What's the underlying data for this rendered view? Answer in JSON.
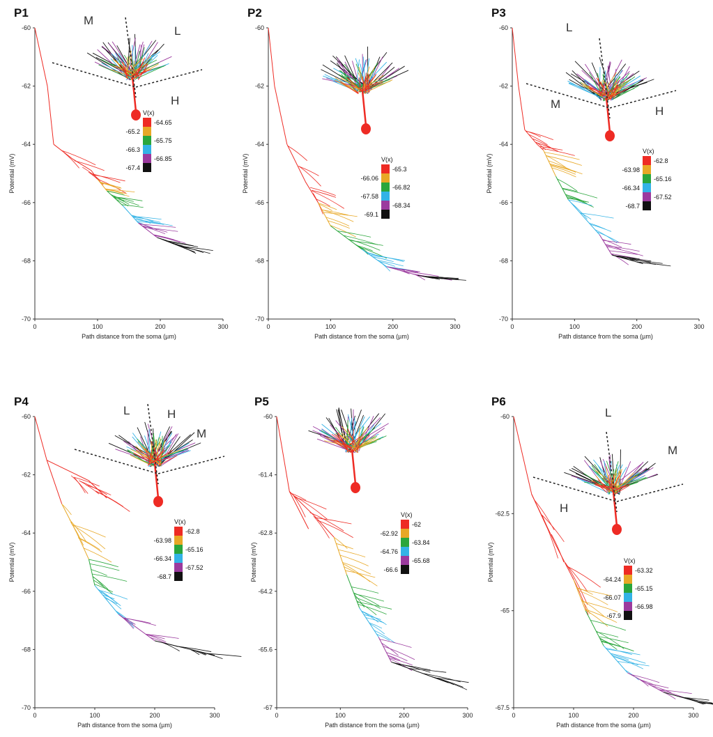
{
  "colors": {
    "red": "#ee2b24",
    "orange": "#e8a826",
    "green": "#2aa63c",
    "cyan": "#33b3e6",
    "purple": "#9b3a9e",
    "black": "#111111"
  },
  "chart_data": [
    {
      "panel": "P1",
      "type": "line",
      "xlabel": "Path distance from the soma (µm)",
      "ylabel": "Potential (mV)",
      "xlim": [
        0,
        300
      ],
      "ylim": [
        -70,
        -60
      ],
      "xticks": [
        "0",
        "100",
        "200",
        "300"
      ],
      "yticks": [
        "-60",
        "-62",
        "-64",
        "-66",
        "-68",
        "-70"
      ],
      "regions": [
        "M",
        "L",
        "H"
      ],
      "legend": {
        "title": "V(x)",
        "left": [
          "-65.2",
          "-66.3",
          "-67.4"
        ],
        "right": [
          "-64.65",
          "-65.75",
          "-66.85"
        ]
      },
      "trunk": [
        [
          0,
          -60
        ],
        [
          20,
          -62
        ],
        [
          30,
          -64
        ]
      ],
      "series": [
        {
          "color": "red",
          "x": [
            30,
            60,
            90,
            100
          ],
          "y": [
            -64,
            -64.5,
            -64.9,
            -65.2
          ]
        },
        {
          "color": "orange",
          "x": [
            100,
            115
          ],
          "y": [
            -65.2,
            -65.6
          ]
        },
        {
          "color": "green",
          "x": [
            115,
            140
          ],
          "y": [
            -65.6,
            -66.1
          ]
        },
        {
          "color": "cyan",
          "x": [
            140,
            165
          ],
          "y": [
            -66.1,
            -66.7
          ]
        },
        {
          "color": "purple",
          "x": [
            165,
            195
          ],
          "y": [
            -66.7,
            -67.2
          ]
        },
        {
          "color": "black",
          "x": [
            195,
            255
          ],
          "y": [
            -67.2,
            -67.7
          ]
        }
      ]
    },
    {
      "panel": "P2",
      "type": "line",
      "xlabel": "Path distance from the soma (µm)",
      "ylabel": "Potential (mV)",
      "xlim": [
        0,
        300
      ],
      "ylim": [
        -70,
        -60
      ],
      "xticks": [
        "0",
        "100",
        "200",
        "300"
      ],
      "yticks": [
        "-60",
        "-62",
        "-64",
        "-66",
        "-68",
        "-70"
      ],
      "regions": [],
      "legend": {
        "title": "V(x)",
        "left": [
          "-66.06",
          "-67.58",
          "-69.1"
        ],
        "right": [
          "-65.3",
          "-66.82",
          "-68.34"
        ]
      },
      "trunk": [
        [
          0,
          -60
        ],
        [
          10,
          -62
        ],
        [
          30,
          -64
        ]
      ],
      "series": [
        {
          "color": "red",
          "x": [
            30,
            60,
            80
          ],
          "y": [
            -64,
            -65.3,
            -66.0
          ]
        },
        {
          "color": "orange",
          "x": [
            80,
            100
          ],
          "y": [
            -66.0,
            -66.8
          ]
        },
        {
          "color": "green",
          "x": [
            100,
            150
          ],
          "y": [
            -66.8,
            -67.6
          ]
        },
        {
          "color": "cyan",
          "x": [
            150,
            190
          ],
          "y": [
            -67.6,
            -68.2
          ]
        },
        {
          "color": "purple",
          "x": [
            190,
            240
          ],
          "y": [
            -68.2,
            -68.5
          ]
        },
        {
          "color": "black",
          "x": [
            240,
            265
          ],
          "y": [
            -68.5,
            -68.6
          ]
        }
      ]
    },
    {
      "panel": "P3",
      "type": "line",
      "xlabel": "Path distance from the soma (µm)",
      "ylabel": "Potential (mV)",
      "xlim": [
        0,
        300
      ],
      "ylim": [
        -70,
        -60
      ],
      "xticks": [
        "0",
        "100",
        "200",
        "300"
      ],
      "yticks": [
        "-60",
        "-62",
        "-64",
        "-66",
        "-68",
        "-70"
      ],
      "regions": [
        "L",
        "M",
        "H"
      ],
      "legend": {
        "title": "V(x)",
        "left": [
          "-63.98",
          "-66.34",
          "-68.7"
        ],
        "right": [
          "-62.8",
          "-65.16",
          "-67.52"
        ]
      },
      "trunk": [
        [
          0,
          -60
        ],
        [
          10,
          -62
        ],
        [
          20,
          -63.5
        ]
      ],
      "series": [
        {
          "color": "red",
          "x": [
            20,
            40,
            50
          ],
          "y": [
            -63.5,
            -64.0,
            -64.2
          ]
        },
        {
          "color": "orange",
          "x": [
            50,
            70
          ],
          "y": [
            -64.2,
            -65.1
          ]
        },
        {
          "color": "green",
          "x": [
            70,
            90
          ],
          "y": [
            -65.1,
            -65.9
          ]
        },
        {
          "color": "cyan",
          "x": [
            90,
            140
          ],
          "y": [
            -65.9,
            -67.1
          ]
        },
        {
          "color": "purple",
          "x": [
            140,
            160
          ],
          "y": [
            -67.1,
            -67.8
          ]
        },
        {
          "color": "black",
          "x": [
            160,
            210
          ],
          "y": [
            -67.8,
            -68.1
          ]
        }
      ]
    },
    {
      "panel": "P4",
      "type": "line",
      "xlabel": "Path distance from the soma (µm)",
      "ylabel": "Potential (mV)",
      "xlim": [
        0,
        300
      ],
      "ylim": [
        -70,
        -60
      ],
      "xticks": [
        "0",
        "100",
        "200",
        "300"
      ],
      "yticks": [
        "-60",
        "-62",
        "-64",
        "-66",
        "-68",
        "-70"
      ],
      "regions": [
        "L",
        "H",
        "M"
      ],
      "legend": {
        "title": "V(x)",
        "left": [
          "-63.98",
          "-66.34",
          "-68.7"
        ],
        "right": [
          "-62.8",
          "-65.16",
          "-67.52"
        ]
      },
      "trunk": [
        [
          0,
          -60
        ],
        [
          20,
          -61.5
        ],
        [
          45,
          -63
        ]
      ],
      "series": [
        {
          "color": "red",
          "x": [
            20,
            90,
            120
          ],
          "y": [
            -61.5,
            -62.2,
            -62.8
          ]
        },
        {
          "color": "orange",
          "x": [
            45,
            70,
            90
          ],
          "y": [
            -63,
            -64.0,
            -64.9
          ]
        },
        {
          "color": "green",
          "x": [
            90,
            100
          ],
          "y": [
            -64.9,
            -65.8
          ]
        },
        {
          "color": "cyan",
          "x": [
            100,
            140
          ],
          "y": [
            -65.8,
            -66.8
          ]
        },
        {
          "color": "purple",
          "x": [
            140,
            200
          ],
          "y": [
            -66.8,
            -67.7
          ]
        },
        {
          "color": "black",
          "x": [
            200,
            300
          ],
          "y": [
            -67.7,
            -68.2
          ]
        }
      ]
    },
    {
      "panel": "P5",
      "type": "line",
      "xlabel": "Path distance from the soma (µm)",
      "ylabel": "Potential (mV)",
      "xlim": [
        0,
        300
      ],
      "ylim": [
        -67,
        -60
      ],
      "xticks": [
        "0",
        "100",
        "200",
        "300"
      ],
      "yticks": [
        "-60",
        "-61.4",
        "-62.8",
        "-64.2",
        "-65.6",
        "-67"
      ],
      "regions": [],
      "legend": {
        "title": "V(x)",
        "left": [
          "-62.92",
          "-64.76",
          "-66.6"
        ],
        "right": [
          "-62",
          "-63.84",
          "-65.68"
        ]
      },
      "trunk": [
        [
          0,
          -60
        ],
        [
          20,
          -61.8
        ],
        [
          50,
          -62.7
        ]
      ],
      "series": [
        {
          "color": "red",
          "x": [
            20,
            60,
            90
          ],
          "y": [
            -61.8,
            -62.4,
            -62.9
          ]
        },
        {
          "color": "orange",
          "x": [
            90,
            110
          ],
          "y": [
            -62.9,
            -63.8
          ]
        },
        {
          "color": "green",
          "x": [
            110,
            130
          ],
          "y": [
            -63.8,
            -64.6
          ]
        },
        {
          "color": "cyan",
          "x": [
            130,
            160
          ],
          "y": [
            -64.6,
            -65.3
          ]
        },
        {
          "color": "purple",
          "x": [
            160,
            180
          ],
          "y": [
            -65.3,
            -65.9
          ]
        },
        {
          "color": "black",
          "x": [
            180,
            270
          ],
          "y": [
            -65.9,
            -66.4
          ]
        }
      ]
    },
    {
      "panel": "P6",
      "type": "line",
      "xlabel": "Path distance from the soma (µm)",
      "ylabel": "Potential (mV)",
      "xlim": [
        0,
        300
      ],
      "ylim": [
        -67.5,
        -60
      ],
      "xticks": [
        "0",
        "100",
        "200",
        "300"
      ],
      "yticks": [
        "-60",
        "-62.5",
        "-65",
        "-67.5"
      ],
      "regions": [
        "L",
        "M",
        "H"
      ],
      "legend": {
        "title": "V(x)",
        "left": [
          "-64.24",
          "-66.07",
          "-67.9"
        ],
        "right": [
          "-63.32",
          "-65.15",
          "-66.98"
        ]
      },
      "trunk": [
        [
          0,
          -60
        ],
        [
          30,
          -62
        ],
        [
          60,
          -63
        ]
      ],
      "series": [
        {
          "color": "red",
          "x": [
            30,
            70,
            100
          ],
          "y": [
            -62,
            -63.3,
            -64.2
          ]
        },
        {
          "color": "orange",
          "x": [
            100,
            120
          ],
          "y": [
            -64.2,
            -65.0
          ]
        },
        {
          "color": "green",
          "x": [
            120,
            150
          ],
          "y": [
            -65.0,
            -65.9
          ]
        },
        {
          "color": "cyan",
          "x": [
            150,
            190
          ],
          "y": [
            -65.9,
            -66.6
          ]
        },
        {
          "color": "purple",
          "x": [
            190,
            250
          ],
          "y": [
            -66.6,
            -67.1
          ]
        },
        {
          "color": "black",
          "x": [
            250,
            320
          ],
          "y": [
            -67.1,
            -67.4
          ]
        }
      ]
    }
  ]
}
